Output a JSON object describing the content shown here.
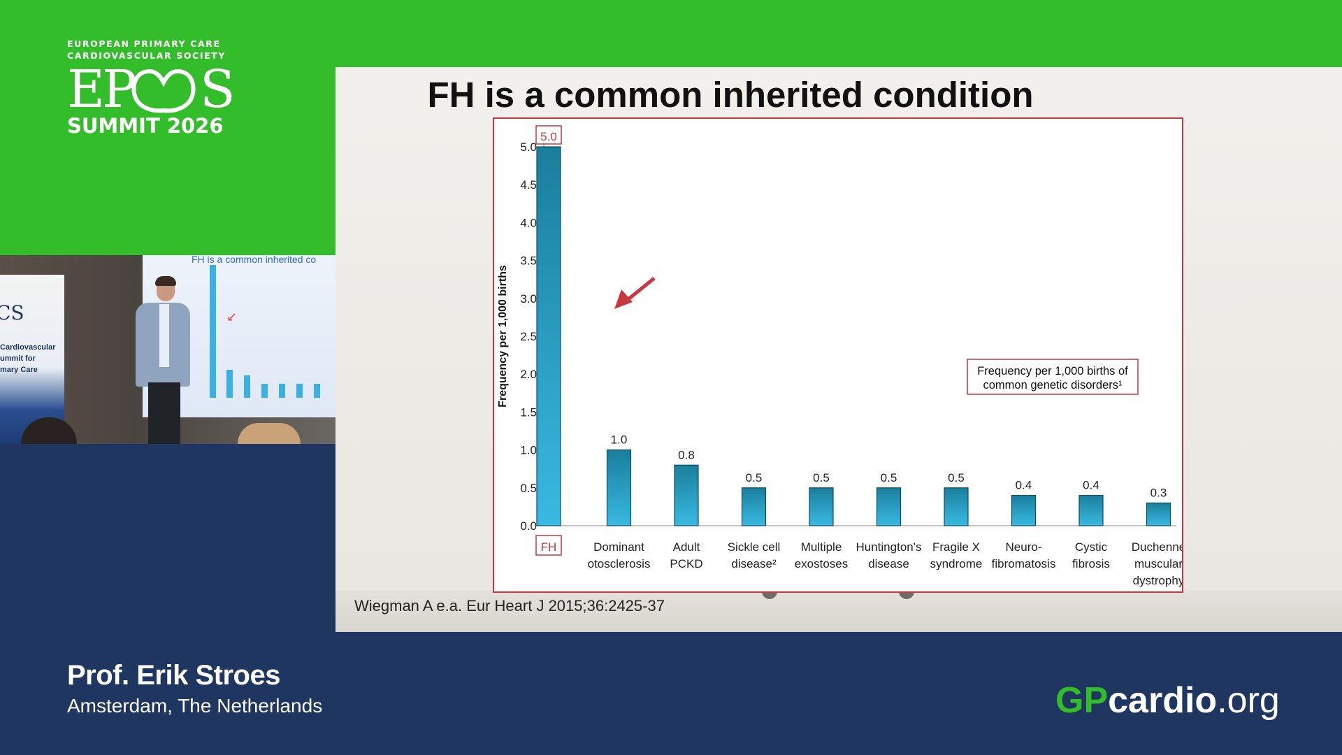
{
  "branding": {
    "org_line1": "EUROPEAN PRIMARY CARE",
    "org_line2": "CARDIOVASCULAR SOCIETY",
    "mark": "EPCCS",
    "event": "SUMMIT 2026",
    "brand_green": "#34bd2b",
    "brand_navy": "#1f3760"
  },
  "camera": {
    "screen_title": "FH is a common inherited co",
    "banner_logo": "CS",
    "banner_text": [
      "Cardiovascular",
      "ummit for",
      "mary Care"
    ]
  },
  "slide": {
    "title": "FH is a common inherited condition",
    "source": "Wiegman A e.a. Eur Heart J 2015;36:2425-37"
  },
  "chart_data": {
    "type": "bar",
    "ylabel": "Frequency per 1,000 births",
    "ylim": [
      0,
      5.0
    ],
    "yticks": [
      "0.0",
      "0.5",
      "1.0",
      "1.5",
      "2.0",
      "2.5",
      "3.0",
      "3.5",
      "4.0",
      "4.5",
      "5.0"
    ],
    "categories": [
      [
        "FH"
      ],
      [
        "Dominant",
        "otosclerosis"
      ],
      [
        "Adult",
        "PCKD"
      ],
      [
        "Sickle cell",
        "disease²"
      ],
      [
        "Multiple",
        "exostoses"
      ],
      [
        "Huntington's",
        "disease"
      ],
      [
        "Fragile X",
        "syndrome"
      ],
      [
        "Neuro-",
        "fibromatosis"
      ],
      [
        "Cystic",
        "fibrosis"
      ],
      [
        "Duchenne",
        "muscular",
        "dystrophy"
      ]
    ],
    "values": [
      5.0,
      1.0,
      0.8,
      0.5,
      0.5,
      0.5,
      0.5,
      0.4,
      0.4,
      0.3
    ],
    "value_labels": [
      "5.0",
      "1.0",
      "0.8",
      "0.5",
      "0.5",
      "0.5",
      "0.5",
      "0.4",
      "0.4",
      "0.3"
    ],
    "legend": [
      "Frequency per 1,000 births of",
      "common genetic disorders¹"
    ],
    "highlight": "FH",
    "bar_color": "#2aa2c9",
    "highlight_color": "#c7393e",
    "grid": false
  },
  "presenter": {
    "name": "Prof. Erik Stroes",
    "location": "Amsterdam, The Netherlands"
  },
  "site": {
    "part1": "GP",
    "part2": "cardio",
    "part3": ".org"
  }
}
